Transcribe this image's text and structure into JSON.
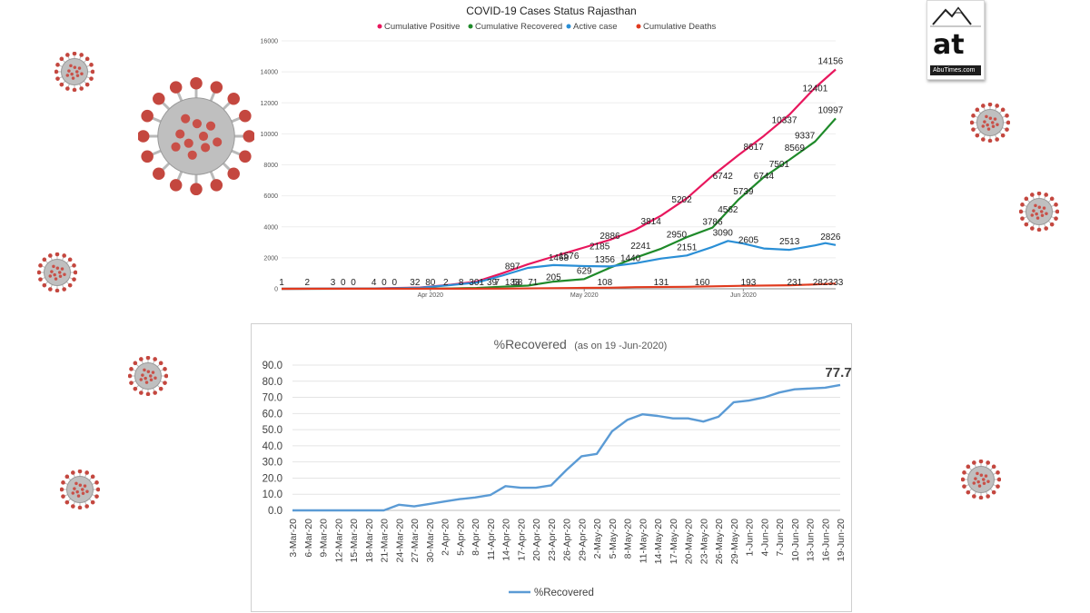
{
  "logo": {
    "mark": "at",
    "site": "AbuTimes",
    "domain": ".com"
  },
  "chart_data": [
    {
      "type": "line",
      "title": "COVID-19 Cases Status Rajasthan",
      "legend_position": "top",
      "ylim": [
        0,
        16000
      ],
      "yticks": [
        "0",
        "2000",
        "4000",
        "6000",
        "8000",
        "10000",
        "12000",
        "14000",
        "16000"
      ],
      "xtick_labels": [
        {
          "label": "Apr 2020",
          "x": "2020-04-01"
        },
        {
          "label": "May 2020",
          "x": "2020-05-01"
        },
        {
          "label": "Jun 2020",
          "x": "2020-06-01"
        }
      ],
      "x_range": [
        "2020-03-03",
        "2020-06-19"
      ],
      "series": [
        {
          "name": "Cumulative Positive",
          "color": "#e8175d",
          "points": [
            [
              "2020-03-03",
              1
            ],
            [
              "2020-03-20",
              17
            ],
            [
              "2020-03-30",
              80
            ],
            [
              "2020-04-05",
              266
            ],
            [
              "2020-04-10",
              463
            ],
            [
              "2020-04-15",
              1005
            ],
            [
              "2020-04-20",
              1576
            ],
            [
              "2020-04-25",
              2083
            ],
            [
              "2020-05-01",
              2666
            ],
            [
              "2020-05-06",
              3158
            ],
            [
              "2020-05-11",
              3814
            ],
            [
              "2020-05-16",
              4727
            ],
            [
              "2020-05-21",
              5845
            ],
            [
              "2020-05-26",
              7300
            ],
            [
              "2020-05-31",
              8617
            ],
            [
              "2020-06-05",
              9862
            ],
            [
              "2020-06-10",
              11245
            ],
            [
              "2020-06-15",
              12981
            ],
            [
              "2020-06-19",
              14156
            ]
          ]
        },
        {
          "name": "Cumulative Recovered",
          "color": "#1f8a2a",
          "points": [
            [
              "2020-03-03",
              0
            ],
            [
              "2020-03-25",
              3
            ],
            [
              "2020-04-05",
              21
            ],
            [
              "2020-04-10",
              50
            ],
            [
              "2020-04-15",
              133
            ],
            [
              "2020-04-20",
              205
            ],
            [
              "2020-04-25",
              462
            ],
            [
              "2020-05-01",
              629
            ],
            [
              "2020-05-06",
              1356
            ],
            [
              "2020-05-11",
              2011
            ],
            [
              "2020-05-16",
              2590
            ],
            [
              "2020-05-21",
              3337
            ],
            [
              "2020-05-26",
              3951
            ],
            [
              "2020-05-31",
              5739
            ],
            [
              "2020-06-05",
              7209
            ],
            [
              "2020-06-10",
              8327
            ],
            [
              "2020-06-15",
              9508
            ],
            [
              "2020-06-19",
              10997
            ]
          ]
        },
        {
          "name": "Active  case",
          "color": "#2a8fd6",
          "points": [
            [
              "2020-03-03",
              1
            ],
            [
              "2020-03-20",
              14
            ],
            [
              "2020-03-30",
              70
            ],
            [
              "2020-04-05",
              240
            ],
            [
              "2020-04-10",
              400
            ],
            [
              "2020-04-15",
              850
            ],
            [
              "2020-04-20",
              1350
            ],
            [
              "2020-04-25",
              1530
            ],
            [
              "2020-05-01",
              1468
            ],
            [
              "2020-05-06",
              1440
            ],
            [
              "2020-05-11",
              1650
            ],
            [
              "2020-05-16",
              1950
            ],
            [
              "2020-05-21",
              2151
            ],
            [
              "2020-05-26",
              2700
            ],
            [
              "2020-05-29",
              3090
            ],
            [
              "2020-06-01",
              2920
            ],
            [
              "2020-06-05",
              2605
            ],
            [
              "2020-06-10",
              2513
            ],
            [
              "2020-06-15",
              2800
            ],
            [
              "2020-06-17",
              2950
            ],
            [
              "2020-06-19",
              2826
            ]
          ]
        },
        {
          "name": "Cumulative Deaths",
          "color": "#e03a1e",
          "points": [
            [
              "2020-03-03",
              0
            ],
            [
              "2020-04-01",
              3
            ],
            [
              "2020-04-15",
              14
            ],
            [
              "2020-05-01",
              58
            ],
            [
              "2020-05-06",
              71
            ],
            [
              "2020-05-11",
              108
            ],
            [
              "2020-05-21",
              131
            ],
            [
              "2020-05-26",
              160
            ],
            [
              "2020-06-01",
              193
            ],
            [
              "2020-06-10",
              231
            ],
            [
              "2020-06-15",
              282
            ],
            [
              "2020-06-19",
              333
            ]
          ]
        }
      ],
      "data_labels": [
        {
          "series": "Cumulative Deaths",
          "labels": [
            {
              "x": "2020-03-03",
              "text": "1",
              "y": 0
            },
            {
              "x": "2020-03-08",
              "text": "2",
              "y": 0
            },
            {
              "x": "2020-03-13",
              "text": "3",
              "y": 0
            },
            {
              "x": "2020-03-15",
              "text": "0",
              "y": 0
            },
            {
              "x": "2020-03-17",
              "text": "0",
              "y": 0
            },
            {
              "x": "2020-03-21",
              "text": "4",
              "y": 0
            },
            {
              "x": "2020-03-23",
              "text": "0",
              "y": 0
            },
            {
              "x": "2020-03-25",
              "text": "0",
              "y": 0
            },
            {
              "x": "2020-03-29",
              "text": "32",
              "y": 0
            },
            {
              "x": "2020-04-04",
              "text": "2",
              "y": 0
            },
            {
              "x": "2020-04-13",
              "text": "39",
              "y": 0
            },
            {
              "x": "2020-04-18",
              "text": "58",
              "y": 0
            },
            {
              "x": "2020-04-21",
              "text": "71",
              "y": 0
            },
            {
              "x": "2020-05-05",
              "text": "108",
              "y": 0
            },
            {
              "x": "2020-05-16",
              "text": "131",
              "y": 0
            },
            {
              "x": "2020-05-24",
              "text": "160",
              "y": 0
            },
            {
              "x": "2020-06-02",
              "text": "193",
              "y": 0
            },
            {
              "x": "2020-06-11",
              "text": "231",
              "y": 0
            },
            {
              "x": "2020-06-16",
              "text": "282",
              "y": 0
            },
            {
              "x": "2020-06-19",
              "text": "333",
              "y": 0
            }
          ]
        },
        {
          "series": "Active  case",
          "labels": [
            {
              "x": "2020-04-01",
              "text": "80",
              "y": 0
            },
            {
              "x": "2020-04-07",
              "text": "8",
              "y": 0
            },
            {
              "x": "2020-04-10",
              "text": "301",
              "y": 0
            },
            {
              "x": "2020-04-14",
              "text": "7",
              "y": 0
            },
            {
              "x": "2020-04-17",
              "text": "133",
              "y": 0
            },
            {
              "x": "2020-05-05",
              "text": "1356",
              "y": 1356
            },
            {
              "x": "2020-05-10",
              "text": "1440",
              "y": 1440
            },
            {
              "x": "2020-05-21",
              "text": "2151",
              "y": 2151
            },
            {
              "x": "2020-05-28",
              "text": "3090",
              "y": 3090
            },
            {
              "x": "2020-06-02",
              "text": "2605",
              "y": 2605
            },
            {
              "x": "2020-06-10",
              "text": "2513",
              "y": 2513
            },
            {
              "x": "2020-06-18",
              "text": "2826",
              "y": 2826
            }
          ]
        },
        {
          "series": "Cumulative Recovered",
          "labels": [
            {
              "x": "2020-04-25",
              "text": "205",
              "y": 205
            },
            {
              "x": "2020-05-01",
              "text": "629",
              "y": 629
            },
            {
              "x": "2020-05-12",
              "text": "2241",
              "y": 2241
            },
            {
              "x": "2020-05-19",
              "text": "2950",
              "y": 2950
            },
            {
              "x": "2020-05-26",
              "text": "3786",
              "y": 3786
            },
            {
              "x": "2020-05-29",
              "text": "4562",
              "y": 4562
            },
            {
              "x": "2020-06-01",
              "text": "5739",
              "y": 5739
            },
            {
              "x": "2020-06-05",
              "text": "6744",
              "y": 6744
            },
            {
              "x": "2020-06-08",
              "text": "7501",
              "y": 7501
            },
            {
              "x": "2020-06-11",
              "text": "8569",
              "y": 8569
            },
            {
              "x": "2020-06-13",
              "text": "9337",
              "y": 9337
            },
            {
              "x": "2020-06-18",
              "text": "10997",
              "y": 10997
            }
          ]
        },
        {
          "series": "Cumulative Positive",
          "labels": [
            {
              "x": "2020-04-17",
              "text": "897",
              "y": 897
            },
            {
              "x": "2020-04-26",
              "text": "1468",
              "y": 1468
            },
            {
              "x": "2020-04-28",
              "text": "1576",
              "y": 1576
            },
            {
              "x": "2020-05-04",
              "text": "2185",
              "y": 2185
            },
            {
              "x": "2020-05-06",
              "text": "2886",
              "y": 2886
            },
            {
              "x": "2020-05-14",
              "text": "3814",
              "y": 3814
            },
            {
              "x": "2020-05-20",
              "text": "5202",
              "y": 5202
            },
            {
              "x": "2020-05-28",
              "text": "6742",
              "y": 6742
            },
            {
              "x": "2020-06-03",
              "text": "8617",
              "y": 8617
            },
            {
              "x": "2020-06-09",
              "text": "10337",
              "y": 10337
            },
            {
              "x": "2020-06-15",
              "text": "12401",
              "y": 12401
            },
            {
              "x": "2020-06-18",
              "text": "14156",
              "y": 14156
            }
          ]
        }
      ]
    },
    {
      "type": "line",
      "title": "%Recovered",
      "subtitle": "(as on 19 -Jun-2020)",
      "legend_position": "bottom",
      "ylim": [
        0,
        90
      ],
      "yticks": [
        "0.0",
        "10.0",
        "20.0",
        "30.0",
        "40.0",
        "50.0",
        "60.0",
        "70.0",
        "80.0",
        "90.0"
      ],
      "categories": [
        "3-Mar-20",
        "6-Mar-20",
        "9-Mar-20",
        "12-Mar-20",
        "15-Mar-20",
        "18-Mar-20",
        "21-Mar-20",
        "24-Mar-20",
        "27-Mar-20",
        "30-Mar-20",
        "2-Apr-20",
        "5-Apr-20",
        "8-Apr-20",
        "11-Apr-20",
        "14-Apr-20",
        "17-Apr-20",
        "20-Apr-20",
        "23-Apr-20",
        "26-Apr-20",
        "29-Apr-20",
        "2-May-20",
        "5-May-20",
        "8-May-20",
        "11-May-20",
        "14-May-20",
        "17-May-20",
        "20-May-20",
        "23-May-20",
        "26-May-20",
        "29-May-20",
        "1-Jun-20",
        "4-Jun-20",
        "7-Jun-20",
        "10-Jun-20",
        "13-Jun-20",
        "16-Jun-20",
        "19-Jun-20"
      ],
      "series": [
        {
          "name": "%Recovered",
          "color": "#5b9bd5",
          "values": [
            0,
            0,
            0,
            0,
            0,
            0,
            0,
            3.5,
            2.5,
            4,
            5.5,
            7,
            8,
            9.5,
            15,
            14,
            14,
            15.5,
            25,
            33.5,
            35,
            49,
            56,
            59.5,
            58.5,
            57,
            57,
            55,
            58,
            67,
            68,
            70,
            73,
            75,
            75.5,
            76,
            77.7
          ]
        }
      ],
      "end_label": "77.7"
    }
  ]
}
